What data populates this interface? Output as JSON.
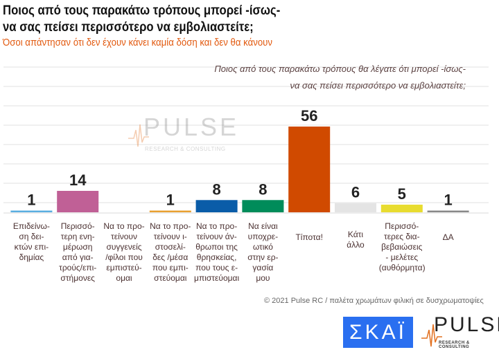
{
  "title_line1": "Ποιος από τους παρακάτω τρόπους μπορεί -ίσως-",
  "title_line2": "να σας πείσει περισσότερο να εμβολιαστείτε;",
  "subtitle": "Όσοι απάντησαν ότι δεν έχουν κάνει καμία δόση και δεν θα κάνουν",
  "question_line1": "Ποιος από τους παρακάτω τρόπους θα λέγατε ότι μπορεί -ίσως-",
  "question_line2": "να σας πείσει περισσότερο να εμβολιαστείτε;",
  "footer": "© 2021 Pulse RC   /   παλέτα χρωμάτων φιλική σε δυσχρωματοψίες",
  "logos": {
    "skai": "ΣΚΑΪ",
    "pulse": "PULSE",
    "pulse_sub": "RESEARCH & CONSULTING"
  },
  "chart_data": {
    "type": "bar",
    "categories": [
      "Επιδείνωση δεικτών επιδημίας",
      "Περισσότερη ενημέρωση από γιατρούς/επιστήμονες",
      "Να το προτείνουν συγγενείς /φίλοι που εμπιστεύομαι",
      "Να το προτείνουν ιστοσελίδες /μέσα που εμπιστεύομαι",
      "Να το προτείνουν άνθρωποι της θρησκείας, που τους εμπιστεύομαι",
      "Να είναι υποχρεωτικό στην εργασία μου",
      "Τίποτα!",
      "Κάτι άλλο",
      "Περισσότερες διαβεβαιώσεις - μελέτες (αυθόρμητα)",
      "ΔΑ"
    ],
    "category_labels": [
      "Επιδείνω-\nση δει-\nκτών επι-\nδημίας",
      "Περισσό-\nτερη ενη-\nμέρωση\nαπό για-\nτρούς/επι-\nστήμονες",
      "Να το προ-\nτείνουν\nσυγγενείς\n/φίλοι που\nεμπιστεύ-\nομαι",
      "Να το προ-\nτείνουν ι-\nστοσελί-\nδες /μέσα\nπου εμπι-\nστεύομαι",
      "Να το προ-\nτείνουν άν-\nθρωποι της\nθρησκείας,\nπου τους ε-\nμπιστεύομαι",
      "Να είναι\nυποχρε-\nωτικό\nστην ερ-\nγασία\nμου",
      "Τίποτα!",
      "Κάτι\nάλλο",
      "Περισσό-\nτερες δια-\nβεβαιώσεις\n- μελέτες\n(αυθόρμητα)",
      "ΔΑ"
    ],
    "values": [
      1,
      14,
      null,
      1,
      8,
      8,
      56,
      6,
      5,
      1
    ],
    "colors": [
      "#5aaee0",
      "#c06096",
      "#ffffff",
      "#e8a030",
      "#0a5ca8",
      "#008c5a",
      "#d04a00",
      "#e4e4e4",
      "#e8dc30",
      "#888888"
    ],
    "ylim": [
      0,
      60
    ],
    "grid": true
  }
}
